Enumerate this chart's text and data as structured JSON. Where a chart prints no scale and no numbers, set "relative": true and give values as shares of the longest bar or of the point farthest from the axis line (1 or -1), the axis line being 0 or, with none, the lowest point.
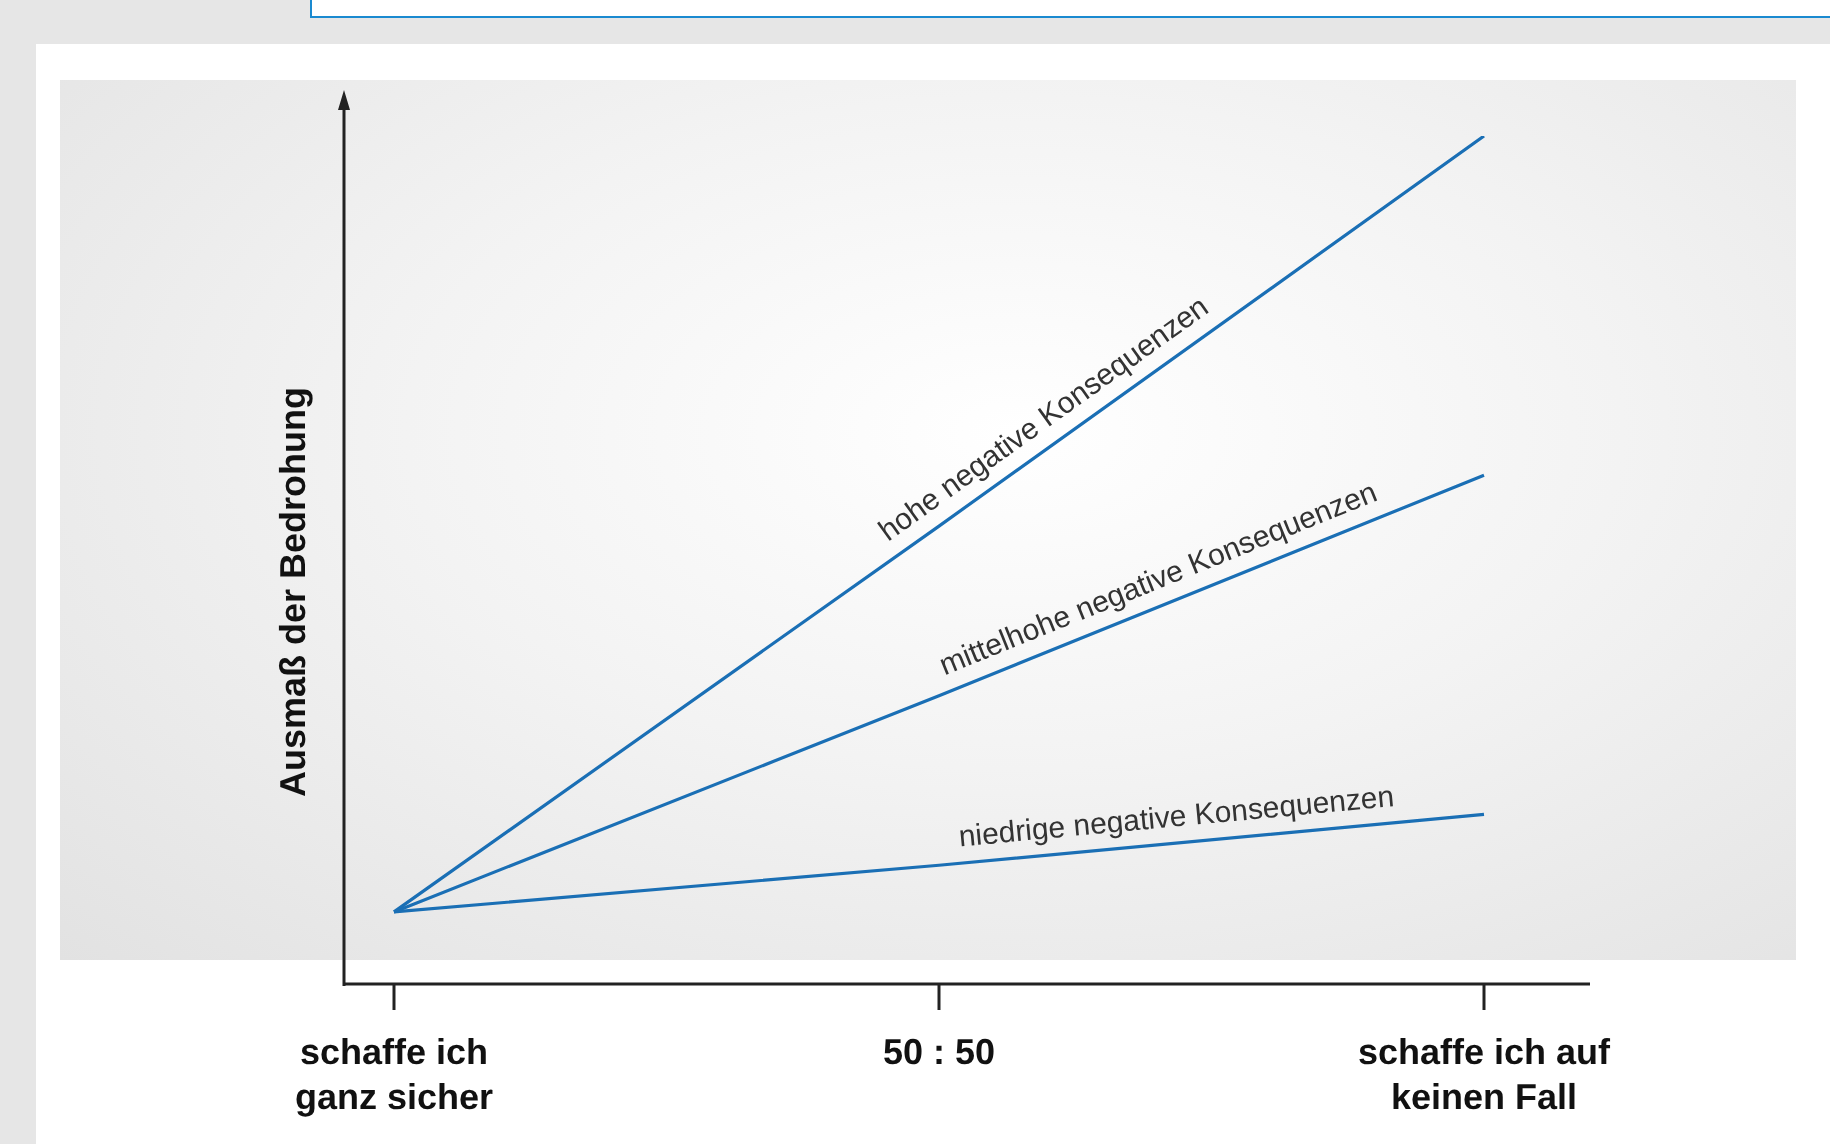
{
  "chart_data": {
    "type": "line",
    "ylabel": "Ausmaß der Bedrohung",
    "relative": true,
    "categories": [
      "schaffe ich ganz sicher",
      "50 : 50",
      "schaffe ich auf keinen Fall"
    ],
    "series": [
      {
        "name": "hohe negative Konsequenzen",
        "color": "#1a6fb5",
        "values": [
          0.085,
          0.54,
          1
        ]
      },
      {
        "name": "mittelhohe negative Konsequenzen",
        "color": "#1a6fb5",
        "values": [
          0.085,
          0.34,
          0.6
        ]
      },
      {
        "name": "niedrige negative Konsequenzen",
        "color": "#1a6fb5",
        "values": [
          0.085,
          0.14,
          0.2
        ]
      }
    ],
    "legend": false,
    "grid": false,
    "marker": "none",
    "line_style": "solid"
  }
}
